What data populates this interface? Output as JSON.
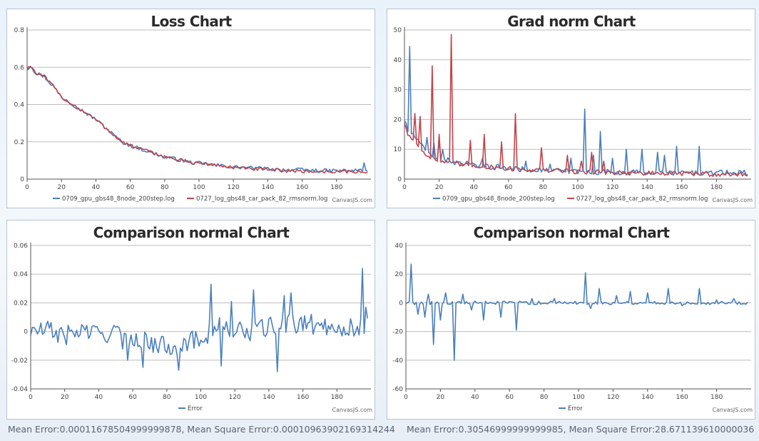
{
  "credit": "CanvasJS.com",
  "colors": {
    "blue": "#4a7fbd",
    "red": "#c2444b",
    "grid": "#bdbdbd",
    "axis": "#555555"
  },
  "chart_data": [
    {
      "id": "loss",
      "type": "line",
      "title": "Loss Chart",
      "xlabel": "",
      "ylabel": "",
      "xlim": [
        0,
        200
      ],
      "ylim": [
        0,
        0.8
      ],
      "xticks": [
        0,
        20,
        40,
        60,
        80,
        100,
        120,
        140,
        160,
        180
      ],
      "yticks": [
        0,
        0.2,
        0.4,
        0.6,
        0.8
      ],
      "xtick_labels": [
        "0",
        "20",
        "40",
        "60",
        "80",
        "100",
        "120",
        "140",
        "160",
        "180"
      ],
      "ytick_labels": [
        "0",
        "0.2",
        "0.4",
        "0.6",
        "0.8"
      ],
      "series": [
        {
          "name": "0709_gpu_gbs48_8node_200step.log",
          "color": "#4a7fbd",
          "keypoints": [
            [
              0,
              0.59
            ],
            [
              2,
              0.61
            ],
            [
              5,
              0.57
            ],
            [
              10,
              0.55
            ],
            [
              15,
              0.5
            ],
            [
              20,
              0.44
            ],
            [
              25,
              0.41
            ],
            [
              30,
              0.38
            ],
            [
              35,
              0.35
            ],
            [
              40,
              0.32
            ],
            [
              45,
              0.28
            ],
            [
              50,
              0.24
            ],
            [
              55,
              0.2
            ],
            [
              60,
              0.18
            ],
            [
              65,
              0.165
            ],
            [
              70,
              0.15
            ],
            [
              75,
              0.135
            ],
            [
              80,
              0.12
            ],
            [
              85,
              0.11
            ],
            [
              90,
              0.1
            ],
            [
              95,
              0.09
            ],
            [
              100,
              0.085
            ],
            [
              110,
              0.075
            ],
            [
              120,
              0.065
            ],
            [
              130,
              0.06
            ],
            [
              140,
              0.055
            ],
            [
              150,
              0.05
            ],
            [
              160,
              0.05
            ],
            [
              170,
              0.045
            ],
            [
              180,
              0.045
            ],
            [
              190,
              0.045
            ],
            [
              195,
              0.05
            ],
            [
              196,
              0.08
            ],
            [
              197,
              0.05
            ],
            [
              198,
              0.04
            ]
          ],
          "noise": 0.01
        },
        {
          "name": "0727_log_gbs48_car_pack_82_rmsnorm.log",
          "color": "#c2444b",
          "keypoints": [
            [
              0,
              0.59
            ],
            [
              2,
              0.61
            ],
            [
              5,
              0.57
            ],
            [
              10,
              0.55
            ],
            [
              15,
              0.5
            ],
            [
              20,
              0.44
            ],
            [
              25,
              0.41
            ],
            [
              30,
              0.38
            ],
            [
              35,
              0.35
            ],
            [
              40,
              0.32
            ],
            [
              45,
              0.28
            ],
            [
              50,
              0.24
            ],
            [
              55,
              0.2
            ],
            [
              60,
              0.18
            ],
            [
              65,
              0.165
            ],
            [
              70,
              0.15
            ],
            [
              75,
              0.135
            ],
            [
              80,
              0.12
            ],
            [
              85,
              0.11
            ],
            [
              90,
              0.1
            ],
            [
              95,
              0.09
            ],
            [
              100,
              0.085
            ],
            [
              110,
              0.075
            ],
            [
              120,
              0.062
            ],
            [
              130,
              0.055
            ],
            [
              140,
              0.05
            ],
            [
              150,
              0.045
            ],
            [
              160,
              0.042
            ],
            [
              170,
              0.04
            ],
            [
              180,
              0.04
            ],
            [
              190,
              0.04
            ],
            [
              198,
              0.035
            ]
          ],
          "noise": 0.009
        }
      ]
    },
    {
      "id": "grad",
      "type": "line",
      "title": "Grad norm Chart",
      "xlabel": "",
      "ylabel": "",
      "xlim": [
        0,
        200
      ],
      "ylim": [
        0,
        50
      ],
      "xticks": [
        0,
        20,
        40,
        60,
        80,
        100,
        120,
        140,
        160,
        180
      ],
      "yticks": [
        0,
        10,
        20,
        30,
        40,
        50
      ],
      "xtick_labels": [
        "0",
        "20",
        "40",
        "60",
        "80",
        "100",
        "120",
        "140",
        "160",
        "180"
      ],
      "ytick_labels": [
        "0",
        "10",
        "20",
        "30",
        "40",
        "50"
      ],
      "series": [
        {
          "name": "0709_gpu_gbs48_8node_200step.log",
          "color": "#4a7fbd",
          "keypoints": [
            [
              0,
              20
            ],
            [
              2,
              16
            ],
            [
              5,
              15
            ],
            [
              10,
              11
            ],
            [
              15,
              8
            ],
            [
              20,
              7
            ],
            [
              30,
              5.5
            ],
            [
              40,
              4.5
            ],
            [
              60,
              3.5
            ],
            [
              80,
              3
            ],
            [
              100,
              2.5
            ],
            [
              140,
              2.2
            ],
            [
              198,
              2
            ]
          ],
          "spikes": [
            [
              3,
              44.5
            ],
            [
              13,
              14
            ],
            [
              17,
              12
            ],
            [
              20,
              13
            ],
            [
              22,
              10
            ],
            [
              36,
              6
            ],
            [
              45,
              7
            ],
            [
              54,
              5
            ],
            [
              70,
              6
            ],
            [
              84,
              5
            ],
            [
              96,
              7
            ],
            [
              104,
              23.5
            ],
            [
              109,
              8
            ],
            [
              113,
              16
            ],
            [
              120,
              7
            ],
            [
              128,
              10
            ],
            [
              137,
              10
            ],
            [
              146,
              9
            ],
            [
              150,
              8
            ],
            [
              157,
              11
            ],
            [
              170,
              11
            ],
            [
              186,
              3
            ],
            [
              196,
              3
            ]
          ],
          "noise": 0.9
        },
        {
          "name": "0727_log_gbs48_car_pack_82_rmsnorm.log",
          "color": "#c2444b",
          "keypoints": [
            [
              0,
              19
            ],
            [
              2,
              15
            ],
            [
              5,
              13
            ],
            [
              10,
              10
            ],
            [
              15,
              7
            ],
            [
              20,
              6
            ],
            [
              30,
              5
            ],
            [
              40,
              4.5
            ],
            [
              60,
              3.5
            ],
            [
              80,
              3
            ],
            [
              100,
              2.5
            ],
            [
              140,
              2
            ],
            [
              198,
              1.5
            ]
          ],
          "spikes": [
            [
              6,
              22
            ],
            [
              9,
              21
            ],
            [
              16,
              38
            ],
            [
              20,
              15
            ],
            [
              27,
              48.5
            ],
            [
              38,
              13
            ],
            [
              46,
              15
            ],
            [
              56,
              12.5
            ],
            [
              64,
              22
            ],
            [
              79,
              10.5
            ],
            [
              94,
              8
            ],
            [
              102,
              6
            ],
            [
              108,
              9
            ],
            [
              115,
              6
            ]
          ],
          "noise": 0.8
        }
      ]
    },
    {
      "id": "cmp1",
      "type": "line",
      "title": "Comparison normal Chart",
      "xlabel": "",
      "ylabel": "",
      "xlim": [
        0,
        200
      ],
      "ylim": [
        -0.04,
        0.06
      ],
      "xticks": [
        0,
        20,
        40,
        60,
        80,
        100,
        120,
        140,
        160,
        180
      ],
      "yticks": [
        -0.04,
        -0.02,
        0,
        0.02,
        0.04,
        0.06
      ],
      "xtick_labels": [
        "0",
        "20",
        "40",
        "60",
        "80",
        "100",
        "120",
        "140",
        "160",
        "180"
      ],
      "ytick_labels": [
        "-0.04",
        "-0.02",
        "0",
        "0.02",
        "0.04",
        "0.06"
      ],
      "series": [
        {
          "name": "Error",
          "color": "#4a7fbd",
          "keypoints": [
            [
              0,
              0
            ],
            [
              10,
              0.001
            ],
            [
              15,
              -0.001
            ],
            [
              20,
              -0.003
            ],
            [
              30,
              0.001
            ],
            [
              40,
              -0.002
            ],
            [
              50,
              0
            ],
            [
              55,
              -0.008
            ],
            [
              60,
              -0.003
            ],
            [
              70,
              -0.008
            ],
            [
              80,
              -0.01
            ],
            [
              90,
              -0.008
            ],
            [
              100,
              -0.005
            ],
            [
              110,
              0.004
            ],
            [
              120,
              0
            ],
            [
              130,
              0
            ],
            [
              140,
              0.003
            ],
            [
              150,
              0.005
            ],
            [
              160,
              0.006
            ],
            [
              170,
              0.004
            ],
            [
              180,
              0.004
            ],
            [
              190,
              0.002
            ],
            [
              196,
              0.003
            ]
          ],
          "spikes": [
            [
              57,
              -0.02
            ],
            [
              66,
              -0.025
            ],
            [
              87,
              -0.027
            ],
            [
              106,
              0.033
            ],
            [
              112,
              -0.024
            ],
            [
              118,
              0.021
            ],
            [
              131,
              0.029
            ],
            [
              145,
              -0.028
            ],
            [
              149,
              0.025
            ],
            [
              153,
              0.027
            ],
            [
              195,
              0.044
            ],
            [
              197,
              0.017
            ]
          ],
          "noise": 0.007
        }
      ],
      "stats": "Mean Error:0.00011678504999999878, Mean Square Error:0.00010963902169314244"
    },
    {
      "id": "cmp2",
      "type": "line",
      "title": "Comparison normal Chart",
      "xlabel": "",
      "ylabel": "",
      "xlim": [
        0,
        200
      ],
      "ylim": [
        -60,
        40
      ],
      "xticks": [
        0,
        20,
        40,
        60,
        80,
        100,
        120,
        140,
        160,
        180
      ],
      "yticks": [
        -60,
        -40,
        -20,
        0,
        20,
        40
      ],
      "xtick_labels": [
        "0",
        "20",
        "40",
        "60",
        "80",
        "100",
        "120",
        "140",
        "160",
        "180"
      ],
      "ytick_labels": [
        "-60",
        "-40",
        "-20",
        "0",
        "20",
        "40"
      ],
      "series": [
        {
          "name": "Error",
          "color": "#4a7fbd",
          "keypoints": [
            [
              0,
              0
            ],
            [
              198,
              0
            ]
          ],
          "spikes": [
            [
              3,
              27
            ],
            [
              7,
              -8
            ],
            [
              11,
              -10
            ],
            [
              13,
              6
            ],
            [
              16,
              -29
            ],
            [
              20,
              -12
            ],
            [
              23,
              7
            ],
            [
              28,
              -40
            ],
            [
              33,
              6
            ],
            [
              38,
              -5
            ],
            [
              45,
              -12
            ],
            [
              55,
              -10
            ],
            [
              64,
              -19
            ],
            [
              73,
              3
            ],
            [
              86,
              3
            ],
            [
              104,
              21
            ],
            [
              107,
              -4
            ],
            [
              112,
              10
            ],
            [
              122,
              5
            ],
            [
              130,
              8
            ],
            [
              140,
              7
            ],
            [
              152,
              10
            ],
            [
              160,
              -2
            ],
            [
              170,
              10
            ],
            [
              180,
              2
            ],
            [
              190,
              3
            ]
          ],
          "noise": 1.2
        }
      ],
      "stats": "Mean Error:0.30546999999999985, Mean Square Error:28.671139610000036"
    }
  ]
}
